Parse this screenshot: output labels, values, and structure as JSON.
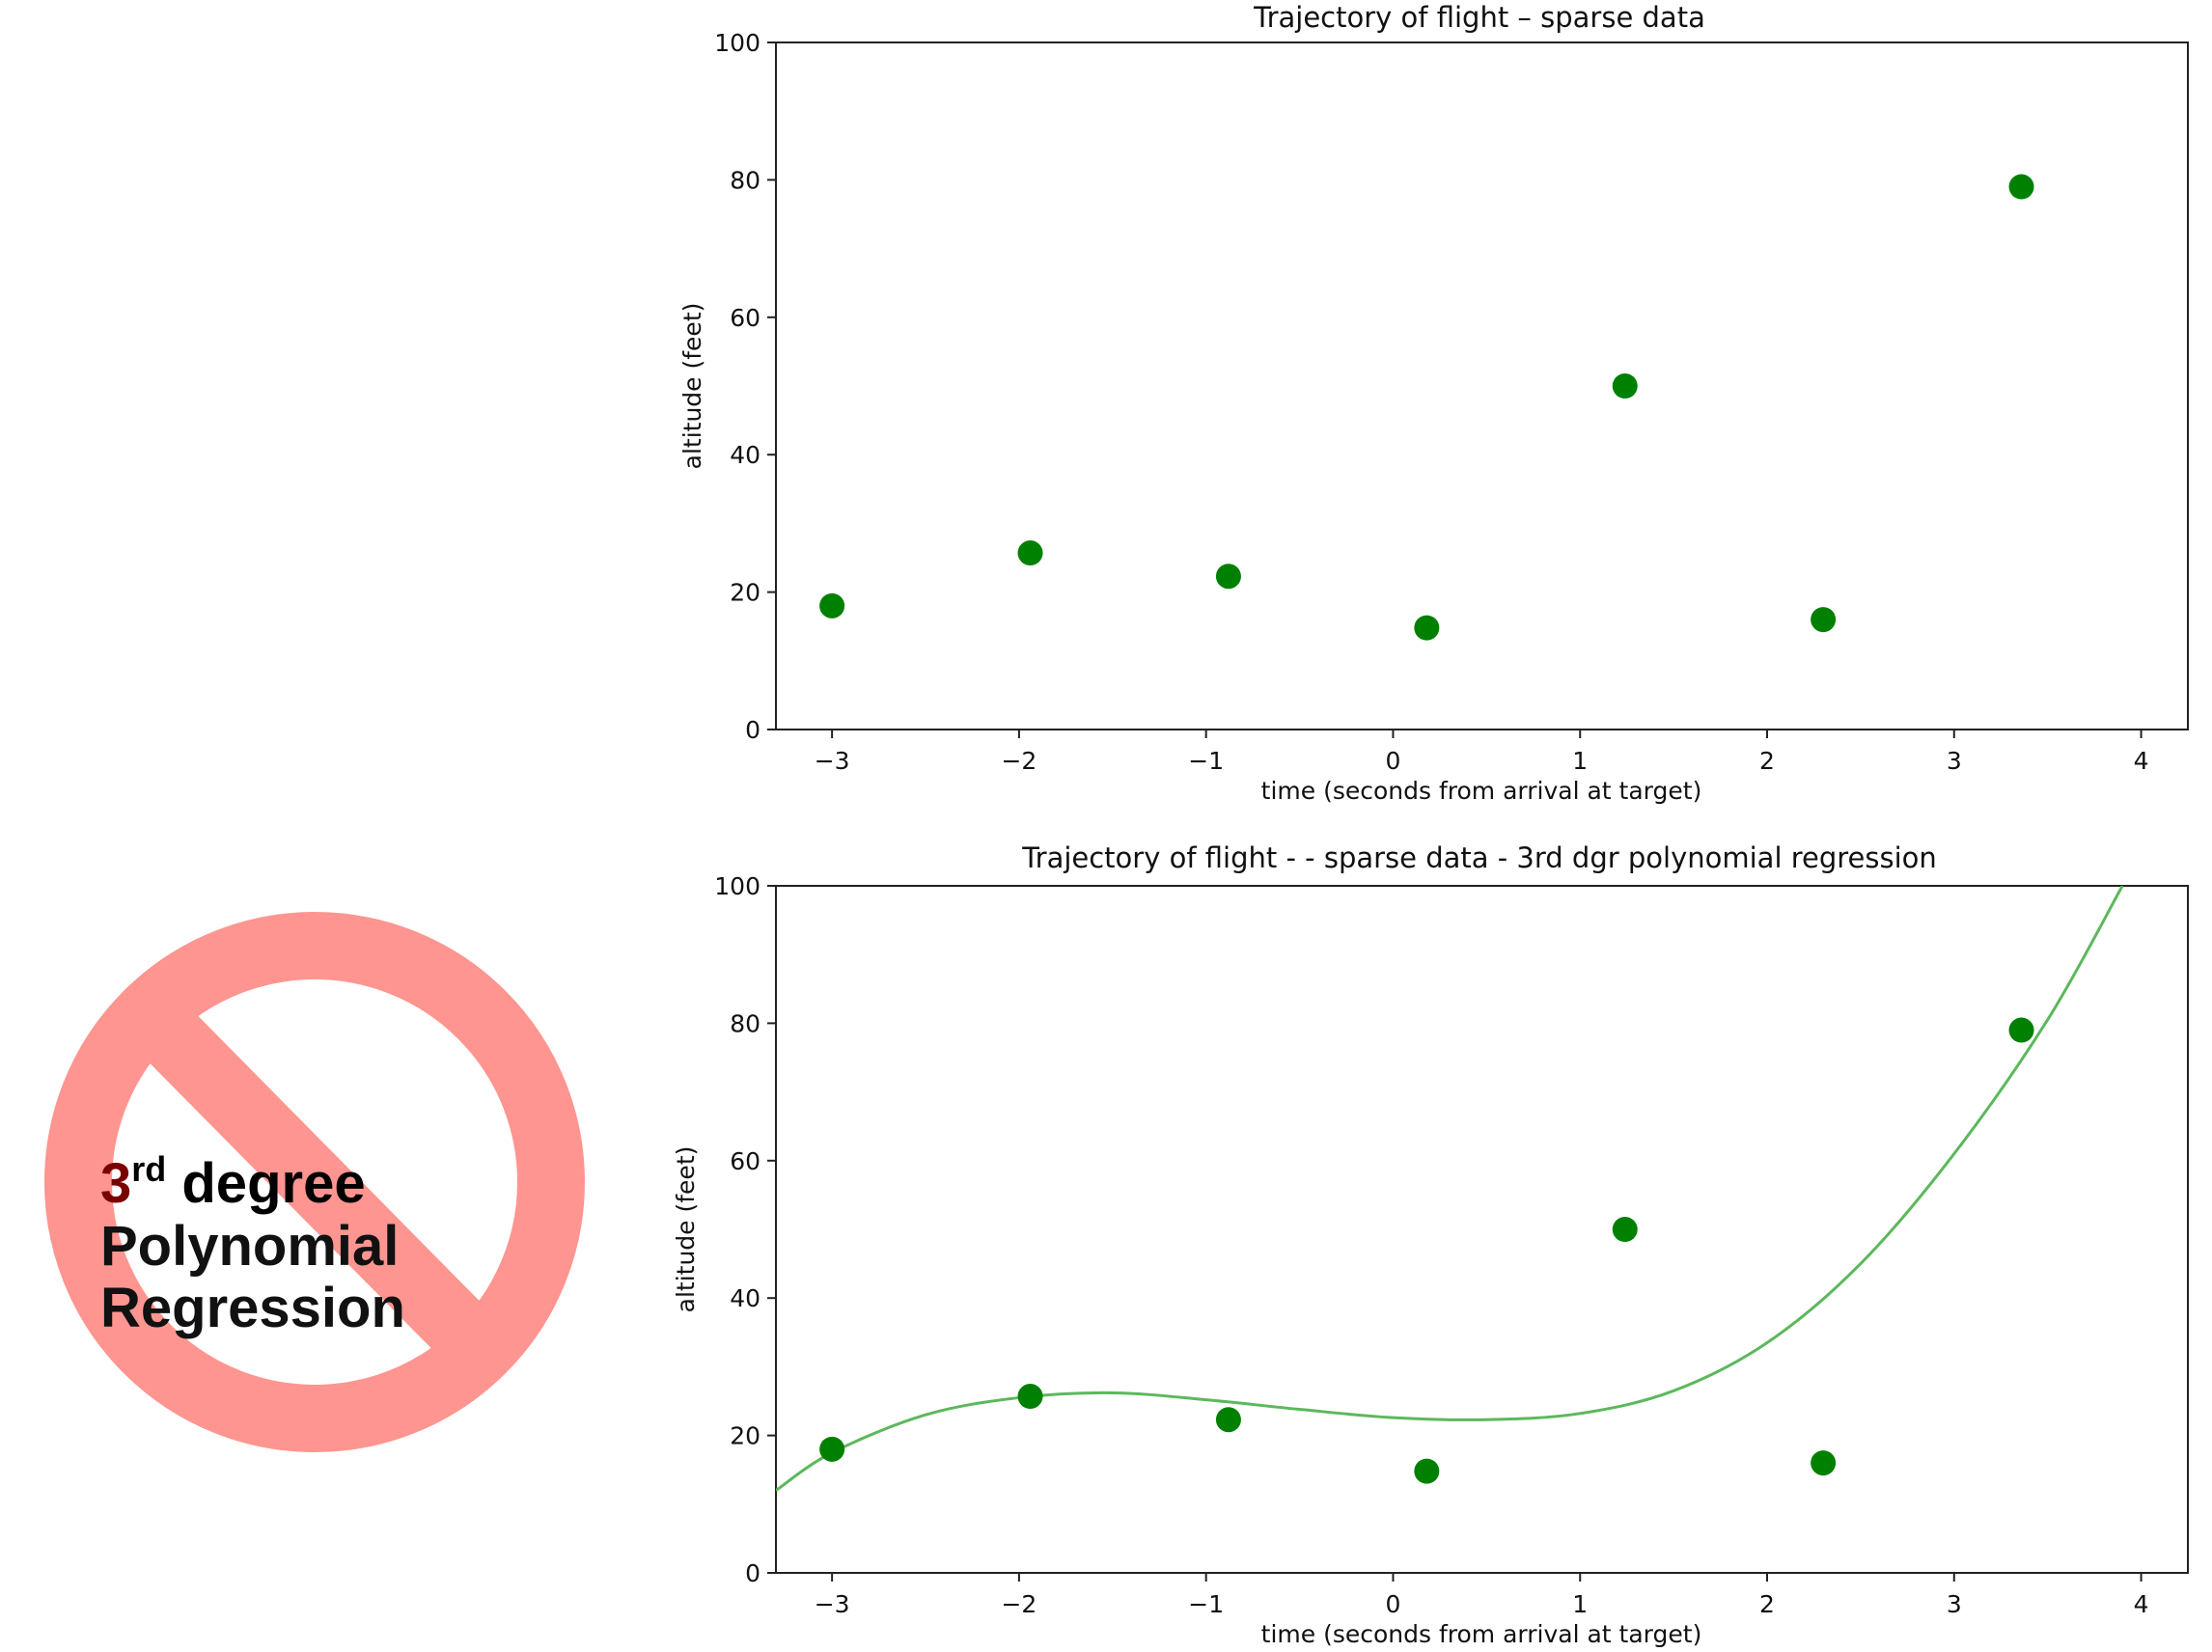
{
  "chart_data": [
    {
      "type": "scatter",
      "title": "Trajectory of flight  –  sparse data",
      "xlabel": "time (seconds from arrival at target)",
      "ylabel": "altitude (feet)",
      "xlim": [
        -3.3,
        4.25
      ],
      "ylim": [
        0,
        100
      ],
      "xticks": [
        -3,
        -2,
        -1,
        0,
        1,
        2,
        3,
        4
      ],
      "xtick_labels": [
        "−3",
        "−2",
        "−1",
        "0",
        "1",
        "2",
        "3",
        "4"
      ],
      "yticks": [
        0,
        20,
        40,
        60,
        80,
        100
      ],
      "ytick_labels": [
        "0",
        "20",
        "40",
        "60",
        "80",
        "100"
      ],
      "grid": false,
      "series": [
        {
          "color": "#008000",
          "points": [
            {
              "x": -3.0,
              "y": 18
            },
            {
              "x": -1.94,
              "y": 25.7
            },
            {
              "x": -0.88,
              "y": 22.3
            },
            {
              "x": 0.18,
              "y": 14.8
            },
            {
              "x": 1.24,
              "y": 50
            },
            {
              "x": 2.3,
              "y": 16
            },
            {
              "x": 3.36,
              "y": 79
            }
          ]
        }
      ]
    },
    {
      "type": "scatter",
      "title": "Trajectory of flight -  - sparse data - 3rd dgr polynomial regression",
      "xlabel": "time (seconds from arrival at target)",
      "ylabel": "altitude (feet)",
      "xlim": [
        -3.3,
        4.25
      ],
      "ylim": [
        0,
        100
      ],
      "xticks": [
        -3,
        -2,
        -1,
        0,
        1,
        2,
        3,
        4
      ],
      "xtick_labels": [
        "−3",
        "−2",
        "−1",
        "0",
        "1",
        "2",
        "3",
        "4"
      ],
      "yticks": [
        0,
        20,
        40,
        60,
        80,
        100
      ],
      "ytick_labels": [
        "0",
        "20",
        "40",
        "60",
        "80",
        "100"
      ],
      "grid": false,
      "series": [
        {
          "color": "#008000",
          "points": [
            {
              "x": -3.0,
              "y": 18
            },
            {
              "x": -1.94,
              "y": 25.7
            },
            {
              "x": -0.88,
              "y": 22.3
            },
            {
              "x": 0.18,
              "y": 14.8
            },
            {
              "x": 1.24,
              "y": 50
            },
            {
              "x": 2.3,
              "y": 16
            },
            {
              "x": 3.36,
              "y": 79
            }
          ]
        }
      ],
      "fit_curve": {
        "color": "#5cb85c",
        "points": [
          {
            "x": -3.3,
            "y": 12
          },
          {
            "x": -3.0,
            "y": 17.5
          },
          {
            "x": -2.5,
            "y": 23
          },
          {
            "x": -2.0,
            "y": 25.5
          },
          {
            "x": -1.5,
            "y": 26.2
          },
          {
            "x": -1.0,
            "y": 25.2
          },
          {
            "x": -0.5,
            "y": 23.8
          },
          {
            "x": 0.0,
            "y": 22.6
          },
          {
            "x": 0.5,
            "y": 22.3
          },
          {
            "x": 1.0,
            "y": 23.2
          },
          {
            "x": 1.5,
            "y": 26.5
          },
          {
            "x": 2.0,
            "y": 33.5
          },
          {
            "x": 2.5,
            "y": 45
          },
          {
            "x": 3.0,
            "y": 61
          },
          {
            "x": 3.5,
            "y": 80.5
          },
          {
            "x": 3.9,
            "y": 100
          }
        ]
      }
    }
  ],
  "sign": {
    "line1_main": "3",
    "line1_sup": "rd",
    "line1_rest": " degree",
    "line2": "Polynomial",
    "line3": "Regression",
    "circle_color": "#ff9590",
    "text_dark": "#000000",
    "text_red": "#7a0000"
  }
}
